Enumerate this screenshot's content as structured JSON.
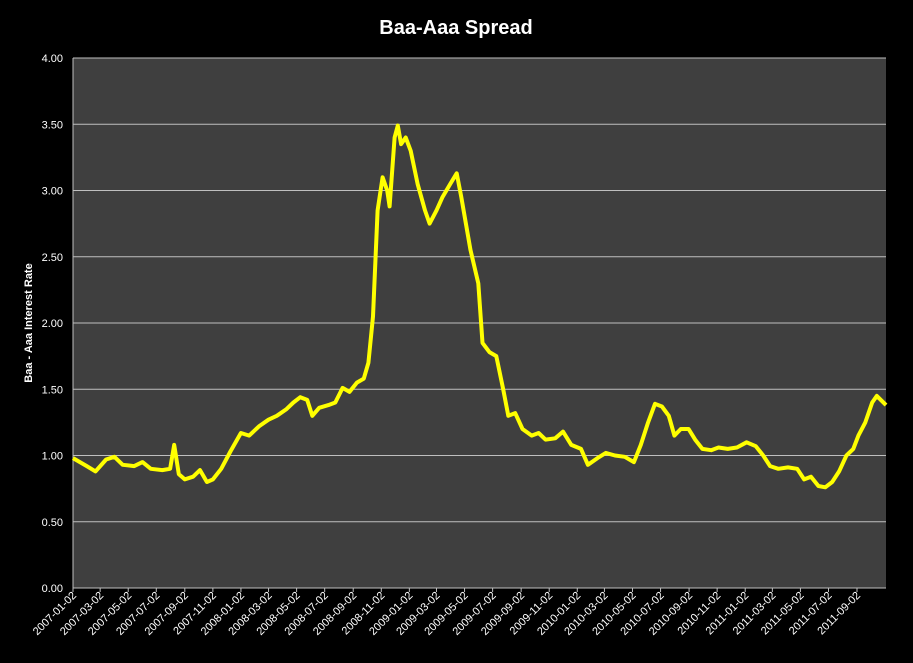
{
  "chart_data": {
    "type": "line",
    "title": "Baa-Aaa Spread",
    "y_label": "Baa - Aaa Interest Rate",
    "color": "#ffff00",
    "grid": true,
    "x": [
      "2007-01-02",
      "2007-02-01",
      "2007-02-20",
      "2007-03-15",
      "2007-04-02",
      "2007-04-20",
      "2007-05-15",
      "2007-06-02",
      "2007-06-20",
      "2007-07-15",
      "2007-08-01",
      "2007-08-10",
      "2007-08-20",
      "2007-09-02",
      "2007-09-20",
      "2007-10-05",
      "2007-10-20",
      "2007-11-02",
      "2007-11-20",
      "2007-12-10",
      "2008-01-02",
      "2008-01-20",
      "2008-02-10",
      "2008-03-02",
      "2008-03-20",
      "2008-04-10",
      "2008-04-25",
      "2008-05-10",
      "2008-05-25",
      "2008-06-05",
      "2008-06-20",
      "2008-07-10",
      "2008-07-25",
      "2008-08-10",
      "2008-08-25",
      "2008-09-10",
      "2008-09-25",
      "2008-10-05",
      "2008-10-15",
      "2008-10-25",
      "2008-11-05",
      "2008-11-15",
      "2008-11-20",
      "2008-12-01",
      "2008-12-08",
      "2008-12-15",
      "2008-12-25",
      "2009-01-05",
      "2009-01-20",
      "2009-02-05",
      "2009-02-15",
      "2009-03-02",
      "2009-03-15",
      "2009-04-01",
      "2009-04-15",
      "2009-04-25",
      "2009-05-05",
      "2009-05-15",
      "2009-06-01",
      "2009-06-10",
      "2009-06-25",
      "2009-07-10",
      "2009-07-25",
      "2009-08-05",
      "2009-08-20",
      "2009-09-05",
      "2009-09-25",
      "2009-10-10",
      "2009-10-25",
      "2009-11-15",
      "2009-12-02",
      "2009-12-20",
      "2010-01-10",
      "2010-01-25",
      "2010-02-15",
      "2010-03-05",
      "2010-03-25",
      "2010-04-15",
      "2010-05-05",
      "2010-05-20",
      "2010-06-05",
      "2010-06-20",
      "2010-07-05",
      "2010-07-20",
      "2010-08-01",
      "2010-08-15",
      "2010-09-01",
      "2010-09-15",
      "2010-10-01",
      "2010-10-20",
      "2010-11-05",
      "2010-11-25",
      "2010-12-15",
      "2011-01-05",
      "2011-01-25",
      "2011-02-10",
      "2011-02-25",
      "2011-03-15",
      "2011-04-05",
      "2011-04-25",
      "2011-05-10",
      "2011-05-25",
      "2011-06-10",
      "2011-06-25",
      "2011-07-10",
      "2011-07-25",
      "2011-08-10",
      "2011-08-25",
      "2011-09-05",
      "2011-09-20",
      "2011-10-05",
      "2011-10-15",
      "2011-11-04"
    ],
    "values": [
      0.98,
      0.92,
      0.88,
      0.97,
      0.99,
      0.93,
      0.92,
      0.95,
      0.9,
      0.89,
      0.9,
      1.08,
      0.86,
      0.82,
      0.84,
      0.89,
      0.8,
      0.82,
      0.9,
      1.03,
      1.17,
      1.15,
      1.22,
      1.27,
      1.3,
      1.35,
      1.4,
      1.44,
      1.42,
      1.3,
      1.36,
      1.38,
      1.4,
      1.51,
      1.48,
      1.55,
      1.58,
      1.7,
      2.05,
      2.85,
      3.1,
      3.0,
      2.88,
      3.4,
      3.49,
      3.35,
      3.4,
      3.3,
      3.05,
      2.85,
      2.75,
      2.85,
      2.95,
      3.05,
      3.13,
      2.95,
      2.75,
      2.55,
      2.3,
      1.85,
      1.78,
      1.75,
      1.5,
      1.3,
      1.32,
      1.2,
      1.15,
      1.17,
      1.12,
      1.13,
      1.18,
      1.08,
      1.05,
      0.93,
      0.98,
      1.02,
      1.0,
      0.99,
      0.95,
      1.08,
      1.25,
      1.39,
      1.37,
      1.3,
      1.15,
      1.2,
      1.2,
      1.12,
      1.05,
      1.04,
      1.06,
      1.05,
      1.06,
      1.1,
      1.07,
      1.0,
      0.92,
      0.9,
      0.91,
      0.9,
      0.82,
      0.84,
      0.77,
      0.76,
      0.8,
      0.88,
      1.0,
      1.05,
      1.15,
      1.25,
      1.4,
      1.45,
      1.38
    ],
    "xlim": [
      "2007-01-02",
      "2011-11-04"
    ],
    "xticks": [
      "2007-01-02",
      "2007-03-02",
      "2007-05-02",
      "2007-07-02",
      "2007-09-02",
      "2007-11-02",
      "2008-01-02",
      "2008-03-02",
      "2008-05-02",
      "2008-07-02",
      "2008-09-02",
      "2008-11-02",
      "2009-01-02",
      "2009-03-02",
      "2009-05-02",
      "2009-07-02",
      "2009-09-02",
      "2009-11-02",
      "2010-01-02",
      "2010-03-02",
      "2010-05-02",
      "2010-07-02",
      "2010-09-02",
      "2010-11-02",
      "2011-01-02",
      "2011-03-02",
      "2011-05-02",
      "2011-07-02",
      "2011-09-02"
    ],
    "ylim": [
      0,
      4
    ],
    "yticks": [
      {
        "value": 0,
        "label": "0.00"
      },
      {
        "value": 0.5,
        "label": "0.50"
      },
      {
        "value": 1,
        "label": "1.00"
      },
      {
        "value": 1.5,
        "label": "1.50"
      },
      {
        "value": 2,
        "label": "2.00"
      },
      {
        "value": 2.5,
        "label": "2.50"
      },
      {
        "value": 3,
        "label": "3.00"
      },
      {
        "value": 3.5,
        "label": "3.50"
      },
      {
        "value": 4,
        "label": "4.00"
      }
    ]
  }
}
